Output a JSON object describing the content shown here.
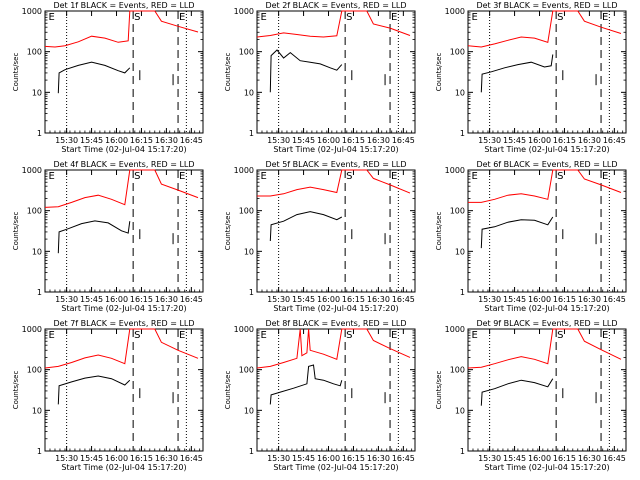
{
  "colors": {
    "events": "#000000",
    "lld": "#ff0000",
    "axes": "#000000",
    "background": "#ffffff"
  },
  "chart_data": [
    {
      "type": "line",
      "title": "Det 1f BLACK = Events, RED = LLD",
      "xlabel": "Start Time (02-Jul-04 15:17:20)",
      "ylabel": "Counts/sec",
      "x_tick_labels": [
        "15:30",
        "15:45",
        "16:00",
        "16:15",
        "16:30",
        "16:45"
      ],
      "y_tick_labels": [
        "1",
        "10",
        "100",
        "1000"
      ],
      "ylog": true,
      "ylim": [
        1,
        1000
      ],
      "xlim_minutes_after_start": [
        0,
        95
      ],
      "markers": [
        "E",
        "S",
        "E"
      ],
      "series": [
        {
          "name": "Events",
          "points": [
            [
              8,
              9.5
            ],
            [
              8.5,
              30
            ],
            [
              12,
              36
            ],
            [
              20,
              46
            ],
            [
              28,
              55
            ],
            [
              36,
              46
            ],
            [
              44,
              34
            ],
            [
              48,
              30
            ],
            [
              51,
              40
            ]
          ]
        },
        {
          "name": "LLD",
          "points": [
            [
              0,
              135
            ],
            [
              6,
              130
            ],
            [
              12,
              140
            ],
            [
              20,
              175
            ],
            [
              28,
              240
            ],
            [
              36,
              215
            ],
            [
              44,
              170
            ],
            [
              50,
              185
            ],
            [
              51,
              1000
            ],
            [
              59,
              1000
            ],
            [
              66,
              1000
            ],
            [
              70,
              560
            ],
            [
              80,
              420
            ],
            [
              92,
              305
            ]
          ]
        }
      ]
    },
    {
      "type": "line",
      "title": "Det 2f BLACK = Events, RED = LLD",
      "xlabel": "Start Time (02-Jul-04 15:17:20)",
      "ylabel": "Counts/sec",
      "x_tick_labels": [
        "15:30",
        "15:45",
        "16:00",
        "16:15",
        "16:30",
        "16:45"
      ],
      "y_tick_labels": [
        "1",
        "10",
        "100",
        "1000"
      ],
      "ylog": true,
      "ylim": [
        1,
        1000
      ],
      "xlim_minutes_after_start": [
        0,
        95
      ],
      "markers": [
        "E",
        "S",
        "E"
      ],
      "series": [
        {
          "name": "Events",
          "points": [
            [
              8,
              10
            ],
            [
              8.5,
              80
            ],
            [
              12,
              110
            ],
            [
              16,
              70
            ],
            [
              20,
              95
            ],
            [
              26,
              60
            ],
            [
              32,
              55
            ],
            [
              38,
              50
            ],
            [
              44,
              40
            ],
            [
              48,
              35
            ],
            [
              51,
              48
            ]
          ]
        },
        {
          "name": "LLD",
          "points": [
            [
              0,
              230
            ],
            [
              8,
              250
            ],
            [
              16,
              290
            ],
            [
              24,
              265
            ],
            [
              32,
              240
            ],
            [
              40,
              230
            ],
            [
              48,
              245
            ],
            [
              51,
              1000
            ],
            [
              66,
              1000
            ],
            [
              70,
              480
            ],
            [
              80,
              380
            ],
            [
              92,
              250
            ]
          ]
        }
      ]
    },
    {
      "type": "line",
      "title": "Det 3f BLACK = Events, RED = LLD",
      "xlabel": "Start Time (02-Jul-04 15:17:20)",
      "ylabel": "Counts/sec",
      "x_tick_labels": [
        "15:30",
        "15:45",
        "16:00",
        "16:15",
        "16:30",
        "16:45"
      ],
      "y_tick_labels": [
        "1",
        "10",
        "100",
        "1000"
      ],
      "ylog": true,
      "ylim": [
        1,
        1000
      ],
      "xlim_minutes_after_start": [
        0,
        95
      ],
      "markers": [
        "E",
        "S",
        "E"
      ],
      "series": [
        {
          "name": "Events",
          "points": [
            [
              8,
              10
            ],
            [
              8.5,
              28
            ],
            [
              14,
              32
            ],
            [
              22,
              40
            ],
            [
              30,
              48
            ],
            [
              38,
              55
            ],
            [
              46,
              42
            ],
            [
              50,
              45
            ],
            [
              51,
              85
            ]
          ]
        },
        {
          "name": "LLD",
          "points": [
            [
              0,
              140
            ],
            [
              8,
              130
            ],
            [
              16,
              155
            ],
            [
              24,
              190
            ],
            [
              32,
              230
            ],
            [
              40,
              215
            ],
            [
              48,
              170
            ],
            [
              51,
              1000
            ],
            [
              66,
              1000
            ],
            [
              70,
              560
            ],
            [
              80,
              400
            ],
            [
              92,
              280
            ]
          ]
        }
      ]
    },
    {
      "type": "line",
      "title": "Det 4f BLACK = Events, RED = LLD",
      "xlabel": "Start Time (02-Jul-04 15:17:20)",
      "ylabel": "Counts/sec",
      "x_tick_labels": [
        "15:30",
        "15:45",
        "16:00",
        "16:15",
        "16:30",
        "16:45"
      ],
      "y_tick_labels": [
        "1",
        "10",
        "100",
        "1000"
      ],
      "ylog": true,
      "ylim": [
        1,
        1000
      ],
      "xlim_minutes_after_start": [
        0,
        95
      ],
      "markers": [
        "E",
        "S",
        "E"
      ],
      "series": [
        {
          "name": "Events",
          "points": [
            [
              8,
              9
            ],
            [
              8.5,
              30
            ],
            [
              14,
              36
            ],
            [
              22,
              48
            ],
            [
              30,
              56
            ],
            [
              38,
              50
            ],
            [
              46,
              32
            ],
            [
              50,
              28
            ],
            [
              51,
              55
            ]
          ]
        },
        {
          "name": "LLD",
          "points": [
            [
              0,
              120
            ],
            [
              8,
              125
            ],
            [
              16,
              160
            ],
            [
              24,
              210
            ],
            [
              32,
              240
            ],
            [
              40,
              190
            ],
            [
              48,
              140
            ],
            [
              51,
              1000
            ],
            [
              66,
              1000
            ],
            [
              70,
              450
            ],
            [
              80,
              320
            ],
            [
              92,
              210
            ]
          ]
        }
      ]
    },
    {
      "type": "line",
      "title": "Det 5f BLACK = Events, RED = LLD",
      "xlabel": "Start Time (02-Jul-04 15:17:20)",
      "ylabel": "Counts/sec",
      "x_tick_labels": [
        "15:30",
        "15:45",
        "16:00",
        "16:15",
        "16:30",
        "16:45"
      ],
      "y_tick_labels": [
        "1",
        "10",
        "100",
        "1000"
      ],
      "ylog": true,
      "ylim": [
        1,
        1000
      ],
      "xlim_minutes_after_start": [
        0,
        95
      ],
      "markers": [
        "E",
        "S",
        "E"
      ],
      "series": [
        {
          "name": "Events",
          "points": [
            [
              8,
              18
            ],
            [
              8.5,
              45
            ],
            [
              16,
              55
            ],
            [
              24,
              80
            ],
            [
              32,
              95
            ],
            [
              40,
              80
            ],
            [
              48,
              60
            ],
            [
              51,
              70
            ]
          ]
        },
        {
          "name": "LLD",
          "points": [
            [
              0,
              230
            ],
            [
              8,
              230
            ],
            [
              16,
              260
            ],
            [
              24,
              330
            ],
            [
              32,
              380
            ],
            [
              40,
              330
            ],
            [
              48,
              280
            ],
            [
              51,
              1000
            ],
            [
              66,
              1000
            ],
            [
              70,
              620
            ],
            [
              80,
              430
            ],
            [
              92,
              270
            ]
          ]
        }
      ]
    },
    {
      "type": "line",
      "title": "Det 6f BLACK = Events, RED = LLD",
      "xlabel": "Start Time (02-Jul-04 15:17:20)",
      "ylabel": "Counts/sec",
      "x_tick_labels": [
        "15:30",
        "15:45",
        "16:00",
        "16:15",
        "16:30",
        "16:45"
      ],
      "y_tick_labels": [
        "1",
        "10",
        "100",
        "1000"
      ],
      "ylog": true,
      "ylim": [
        1,
        1000
      ],
      "xlim_minutes_after_start": [
        0,
        95
      ],
      "markers": [
        "E",
        "S",
        "E"
      ],
      "series": [
        {
          "name": "Events",
          "points": [
            [
              8,
              12
            ],
            [
              8.5,
              35
            ],
            [
              16,
              40
            ],
            [
              24,
              52
            ],
            [
              32,
              60
            ],
            [
              40,
              58
            ],
            [
              48,
              45
            ],
            [
              51,
              70
            ]
          ]
        },
        {
          "name": "LLD",
          "points": [
            [
              0,
              160
            ],
            [
              8,
              160
            ],
            [
              16,
              190
            ],
            [
              24,
              240
            ],
            [
              32,
              260
            ],
            [
              40,
              230
            ],
            [
              48,
              190
            ],
            [
              51,
              1000
            ],
            [
              66,
              1000
            ],
            [
              70,
              600
            ],
            [
              80,
              430
            ],
            [
              92,
              280
            ]
          ]
        }
      ]
    },
    {
      "type": "line",
      "title": "Det 7f BLACK = Events, RED = LLD",
      "xlabel": "Start Time (02-Jul-04 15:17:20)",
      "ylabel": "Counts/sec",
      "x_tick_labels": [
        "15:30",
        "15:45",
        "16:00",
        "16:15",
        "16:30",
        "16:45"
      ],
      "y_tick_labels": [
        "1",
        "10",
        "100",
        "1000"
      ],
      "ylog": true,
      "ylim": [
        1,
        1000
      ],
      "xlim_minutes_after_start": [
        0,
        95
      ],
      "markers": [
        "E",
        "S",
        "E"
      ],
      "series": [
        {
          "name": "Events",
          "points": [
            [
              8,
              14
            ],
            [
              8.5,
              40
            ],
            [
              16,
              50
            ],
            [
              24,
              62
            ],
            [
              32,
              70
            ],
            [
              40,
              60
            ],
            [
              48,
              42
            ],
            [
              51,
              55
            ]
          ]
        },
        {
          "name": "LLD",
          "points": [
            [
              0,
              110
            ],
            [
              8,
              120
            ],
            [
              16,
              150
            ],
            [
              24,
              195
            ],
            [
              32,
              230
            ],
            [
              40,
              190
            ],
            [
              48,
              140
            ],
            [
              51,
              1000
            ],
            [
              66,
              1000
            ],
            [
              70,
              470
            ],
            [
              80,
              300
            ],
            [
              92,
              190
            ]
          ]
        }
      ]
    },
    {
      "type": "line",
      "title": "Det 8f BLACK = Events, RED = LLD",
      "xlabel": "Start Time (02-Jul-04 15:17:20)",
      "ylabel": "Counts/sec",
      "x_tick_labels": [
        "15:30",
        "15:45",
        "16:00",
        "16:15",
        "16:30",
        "16:45"
      ],
      "y_tick_labels": [
        "1",
        "10",
        "100",
        "1000"
      ],
      "ylog": true,
      "ylim": [
        1,
        1000
      ],
      "xlim_minutes_after_start": [
        0,
        95
      ],
      "markers": [
        "E",
        "S",
        "E"
      ],
      "series": [
        {
          "name": "Events",
          "points": [
            [
              8,
              14
            ],
            [
              8.5,
              24
            ],
            [
              14,
              28
            ],
            [
              22,
              35
            ],
            [
              30,
              45
            ],
            [
              31,
              120
            ],
            [
              34,
              130
            ],
            [
              35,
              60
            ],
            [
              40,
              55
            ],
            [
              46,
              45
            ],
            [
              50,
              40
            ],
            [
              51,
              55
            ]
          ]
        },
        {
          "name": "LLD",
          "points": [
            [
              0,
              110
            ],
            [
              8,
              120
            ],
            [
              16,
              150
            ],
            [
              24,
              190
            ],
            [
              26,
              1000
            ],
            [
              27,
              220
            ],
            [
              30,
              260
            ],
            [
              31,
              1000
            ],
            [
              32,
              300
            ],
            [
              40,
              240
            ],
            [
              48,
              180
            ],
            [
              51,
              1000
            ],
            [
              66,
              1000
            ],
            [
              70,
              520
            ],
            [
              80,
              330
            ],
            [
              92,
              200
            ]
          ]
        }
      ]
    },
    {
      "type": "line",
      "title": "Det 9f BLACK = Events, RED = LLD",
      "xlabel": "Start Time (02-Jul-04 15:17:20)",
      "ylabel": "Counts/sec",
      "x_tick_labels": [
        "15:30",
        "15:45",
        "16:00",
        "16:15",
        "16:30",
        "16:45"
      ],
      "y_tick_labels": [
        "1",
        "10",
        "100",
        "1000"
      ],
      "ylog": true,
      "ylim": [
        1,
        1000
      ],
      "xlim_minutes_after_start": [
        0,
        95
      ],
      "markers": [
        "E",
        "S",
        "E"
      ],
      "series": [
        {
          "name": "Events",
          "points": [
            [
              8,
              13
            ],
            [
              8.5,
              28
            ],
            [
              16,
              34
            ],
            [
              24,
              45
            ],
            [
              32,
              55
            ],
            [
              40,
              48
            ],
            [
              48,
              38
            ],
            [
              51,
              60
            ]
          ]
        },
        {
          "name": "LLD",
          "points": [
            [
              0,
              110
            ],
            [
              8,
              115
            ],
            [
              16,
              140
            ],
            [
              24,
              175
            ],
            [
              32,
              210
            ],
            [
              40,
              180
            ],
            [
              48,
              140
            ],
            [
              51,
              1000
            ],
            [
              66,
              1000
            ],
            [
              70,
              500
            ],
            [
              80,
              310
            ],
            [
              92,
              180
            ]
          ]
        }
      ]
    }
  ]
}
